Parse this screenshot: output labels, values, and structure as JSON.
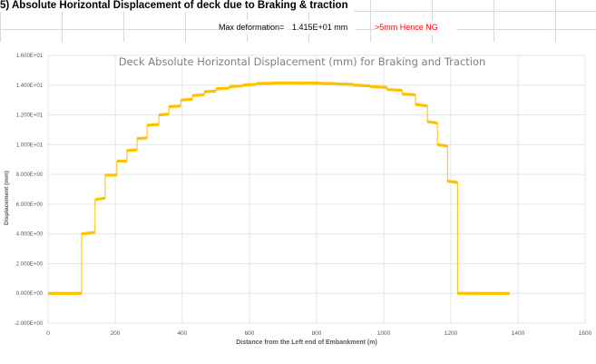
{
  "sheet": {
    "section_title": "5) Absolute Horizontal Displacement of deck due to Braking & traction",
    "max_label": "Max deformation=",
    "max_value": "1.415E+01  mm",
    "ng_note": ">5mm Hence NG"
  },
  "colors": {
    "series": "#ffc000",
    "axis_text": "#595959",
    "gridline": "#e6e6e6",
    "title_text": "#7f7f7f",
    "ng_note": "#ff0000"
  },
  "chart_data": {
    "type": "line",
    "title": "Deck Absolute Horizontal Displacement (mm) for Braking and Traction",
    "xlabel": "Distance from the Left end of Embankment (m)",
    "ylabel": "Displacement (mm)",
    "xlim": [
      0,
      1600
    ],
    "ylim": [
      -2,
      16
    ],
    "xticks": [
      0,
      200,
      400,
      600,
      800,
      1000,
      1200,
      1400,
      1600
    ],
    "xtick_labels": [
      "0",
      "200",
      "400",
      "600",
      "800",
      "1000",
      "1200",
      "1400",
      "1600"
    ],
    "yticks": [
      -2,
      0,
      2,
      4,
      6,
      8,
      10,
      12,
      14,
      16
    ],
    "ytick_labels": [
      "-2.000E+00",
      "0.000E+00",
      "2.000E+00",
      "4.000E+00",
      "6.000E+00",
      "8.000E+00",
      "1.000E+01",
      "1.200E+01",
      "1.400E+01",
      "1.600E+01"
    ],
    "grid": true,
    "legend": "none",
    "series": [
      {
        "x": [
          0,
          100,
          100,
          140,
          140,
          170,
          170,
          205,
          205,
          235,
          235,
          265,
          265,
          295,
          295,
          330,
          330,
          360,
          360,
          395,
          395,
          430,
          430,
          465,
          465,
          500,
          500,
          540,
          540,
          580,
          580,
          620,
          620,
          665,
          665,
          710,
          710,
          760,
          760,
          810,
          810,
          860,
          860,
          910,
          910,
          960,
          960,
          1010,
          1010,
          1055,
          1055,
          1095,
          1095,
          1130,
          1130,
          1160,
          1160,
          1190,
          1190,
          1220,
          1220,
          1250,
          1250,
          1275,
          1275,
          1375
        ],
        "y": [
          0,
          0,
          4.0,
          4.1,
          6.3,
          6.4,
          7.95,
          7.95,
          8.9,
          8.9,
          9.6,
          9.65,
          10.4,
          10.45,
          11.3,
          11.35,
          12.0,
          12.05,
          12.55,
          12.6,
          13.0,
          13.05,
          13.3,
          13.35,
          13.55,
          13.6,
          13.75,
          13.8,
          13.9,
          13.95,
          14.0,
          14.05,
          14.1,
          14.12,
          14.14,
          14.15,
          14.15,
          14.14,
          14.15,
          14.14,
          14.12,
          14.1,
          14.08,
          14.05,
          14.0,
          13.95,
          13.9,
          13.85,
          13.7,
          13.65,
          13.4,
          13.35,
          12.7,
          12.6,
          11.55,
          11.45,
          10.0,
          9.9,
          7.55,
          7.45,
          0.0,
          0.0,
          0,
          0,
          0,
          0
        ]
      }
    ]
  }
}
